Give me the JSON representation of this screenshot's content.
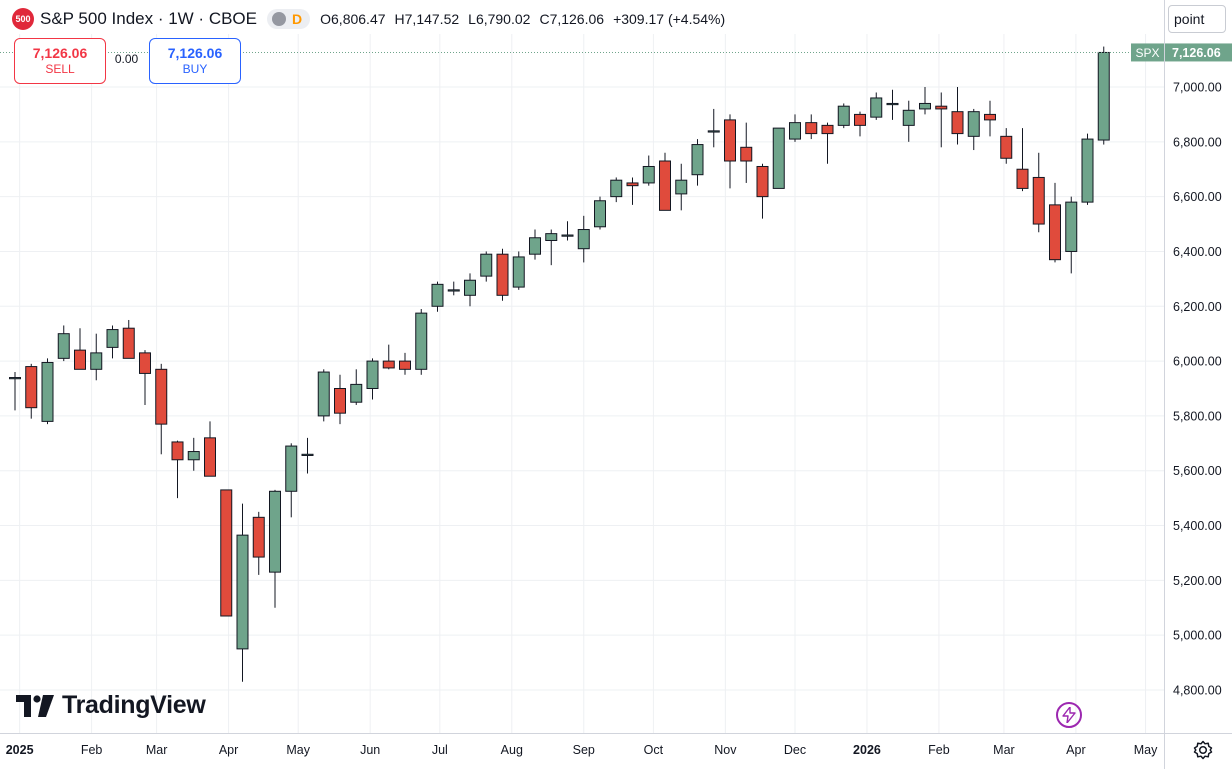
{
  "header": {
    "badge": "500",
    "title": "S&P 500 Index · 1W · CBOE",
    "pill_letter": "D",
    "ohlc": [
      {
        "key": "O",
        "value": "6,806.47"
      },
      {
        "key": "H",
        "value": "7,147.52"
      },
      {
        "key": "L",
        "value": "6,790.02"
      },
      {
        "key": "C",
        "value": "7,126.06"
      }
    ],
    "change": "+309.17 (+4.54%)"
  },
  "trade": {
    "sell_price": "7,126.06",
    "sell_label": "SELL",
    "spread": "0.00",
    "buy_price": "7,126.06",
    "buy_label": "BUY"
  },
  "price_scale": {
    "unit_label": "point"
  },
  "branding": {
    "logo_text": "TradingView"
  },
  "colors": {
    "up": "#6fa48b",
    "down": "#e04b3c",
    "grid": "#eef0f3",
    "last_price_tag": "#6fa48b"
  },
  "icons": {
    "alert": "bolt-icon",
    "settings": "gear-icon",
    "logo": "tradingview-logo-icon"
  },
  "chart_data": {
    "type": "candlestick",
    "symbol_tag": "SPX",
    "last_price": 7126.06,
    "last_price_label": "7,126.06",
    "ylim": [
      4700,
      7200
    ],
    "y_ticks": [
      4800,
      5000,
      5200,
      5400,
      5600,
      5800,
      6000,
      6200,
      6400,
      6600,
      6800,
      7000
    ],
    "y_tick_labels": [
      "4,800.00",
      "5,000.00",
      "5,200.00",
      "5,400.00",
      "5,600.00",
      "5,800.00",
      "6,000.00",
      "6,200.00",
      "6,400.00",
      "6,600.00",
      "6,800.00",
      "7,000.00"
    ],
    "x_labels": [
      {
        "label": "2025",
        "date": "2025-01-01",
        "bold": true
      },
      {
        "label": "Feb",
        "date": "2025-02-01",
        "bold": false
      },
      {
        "label": "Mar",
        "date": "2025-03-01",
        "bold": false
      },
      {
        "label": "Apr",
        "date": "2025-04-01",
        "bold": false
      },
      {
        "label": "May",
        "date": "2025-05-01",
        "bold": false
      },
      {
        "label": "Jun",
        "date": "2025-06-01",
        "bold": false
      },
      {
        "label": "Jul",
        "date": "2025-07-01",
        "bold": false
      },
      {
        "label": "Aug",
        "date": "2025-08-01",
        "bold": false
      },
      {
        "label": "Sep",
        "date": "2025-09-01",
        "bold": false
      },
      {
        "label": "Oct",
        "date": "2025-10-01",
        "bold": false
      },
      {
        "label": "Nov",
        "date": "2025-11-01",
        "bold": false
      },
      {
        "label": "Dec",
        "date": "2025-12-01",
        "bold": false
      },
      {
        "label": "2026",
        "date": "2026-01-01",
        "bold": true
      },
      {
        "label": "Feb",
        "date": "2026-02-01",
        "bold": false
      },
      {
        "label": "Mar",
        "date": "2026-03-01",
        "bold": false
      },
      {
        "label": "Apr",
        "date": "2026-04-01",
        "bold": false
      },
      {
        "label": "May",
        "date": "2026-05-01",
        "bold": false
      }
    ],
    "candles": [
      {
        "date": "2024-12-30",
        "o": 5940,
        "h": 5960,
        "l": 5820,
        "c": 5940
      },
      {
        "date": "2025-01-06",
        "o": 5980,
        "h": 5990,
        "l": 5790,
        "c": 5830
      },
      {
        "date": "2025-01-13",
        "o": 5780,
        "h": 6010,
        "l": 5770,
        "c": 5995
      },
      {
        "date": "2025-01-20",
        "o": 6010,
        "h": 6130,
        "l": 6000,
        "c": 6100
      },
      {
        "date": "2025-01-27",
        "o": 6040,
        "h": 6120,
        "l": 5970,
        "c": 5970
      },
      {
        "date": "2025-02-03",
        "o": 5970,
        "h": 6100,
        "l": 5930,
        "c": 6030
      },
      {
        "date": "2025-02-10",
        "o": 6050,
        "h": 6130,
        "l": 6010,
        "c": 6115
      },
      {
        "date": "2025-02-17",
        "o": 6120,
        "h": 6150,
        "l": 6010,
        "c": 6010
      },
      {
        "date": "2025-02-24",
        "o": 6030,
        "h": 6040,
        "l": 5840,
        "c": 5955
      },
      {
        "date": "2025-03-03",
        "o": 5970,
        "h": 5990,
        "l": 5660,
        "c": 5770
      },
      {
        "date": "2025-03-10",
        "o": 5705,
        "h": 5710,
        "l": 5500,
        "c": 5640
      },
      {
        "date": "2025-03-17",
        "o": 5640,
        "h": 5720,
        "l": 5600,
        "c": 5670
      },
      {
        "date": "2025-03-24",
        "o": 5720,
        "h": 5780,
        "l": 5580,
        "c": 5580
      },
      {
        "date": "2025-03-31",
        "o": 5530,
        "h": 5530,
        "l": 5070,
        "c": 5070
      },
      {
        "date": "2025-04-07",
        "o": 4950,
        "h": 5480,
        "l": 4830,
        "c": 5365
      },
      {
        "date": "2025-04-14",
        "o": 5430,
        "h": 5450,
        "l": 5220,
        "c": 5285
      },
      {
        "date": "2025-04-21",
        "o": 5230,
        "h": 5530,
        "l": 5100,
        "c": 5525
      },
      {
        "date": "2025-04-28",
        "o": 5525,
        "h": 5700,
        "l": 5430,
        "c": 5690
      },
      {
        "date": "2025-05-05",
        "o": 5660,
        "h": 5720,
        "l": 5590,
        "c": 5660
      },
      {
        "date": "2025-05-12",
        "o": 5800,
        "h": 5970,
        "l": 5780,
        "c": 5960
      },
      {
        "date": "2025-05-19",
        "o": 5900,
        "h": 5950,
        "l": 5770,
        "c": 5810
      },
      {
        "date": "2025-05-26",
        "o": 5850,
        "h": 5970,
        "l": 5840,
        "c": 5915
      },
      {
        "date": "2025-06-02",
        "o": 5900,
        "h": 6010,
        "l": 5860,
        "c": 6000
      },
      {
        "date": "2025-06-09",
        "o": 6000,
        "h": 6060,
        "l": 5970,
        "c": 5975
      },
      {
        "date": "2025-06-16",
        "o": 6000,
        "h": 6030,
        "l": 5950,
        "c": 5970
      },
      {
        "date": "2025-06-23",
        "o": 5970,
        "h": 6190,
        "l": 5950,
        "c": 6175
      },
      {
        "date": "2025-06-30",
        "o": 6200,
        "h": 6290,
        "l": 6180,
        "c": 6280
      },
      {
        "date": "2025-07-07",
        "o": 6260,
        "h": 6290,
        "l": 6240,
        "c": 6260
      },
      {
        "date": "2025-07-14",
        "o": 6240,
        "h": 6320,
        "l": 6200,
        "c": 6295
      },
      {
        "date": "2025-07-21",
        "o": 6310,
        "h": 6400,
        "l": 6290,
        "c": 6390
      },
      {
        "date": "2025-07-28",
        "o": 6390,
        "h": 6410,
        "l": 6220,
        "c": 6240
      },
      {
        "date": "2025-08-04",
        "o": 6270,
        "h": 6400,
        "l": 6260,
        "c": 6380
      },
      {
        "date": "2025-08-11",
        "o": 6390,
        "h": 6480,
        "l": 6370,
        "c": 6450
      },
      {
        "date": "2025-08-18",
        "o": 6440,
        "h": 6480,
        "l": 6350,
        "c": 6465
      },
      {
        "date": "2025-08-25",
        "o": 6460,
        "h": 6510,
        "l": 6440,
        "c": 6460
      },
      {
        "date": "2025-09-01",
        "o": 6410,
        "h": 6530,
        "l": 6360,
        "c": 6480
      },
      {
        "date": "2025-09-08",
        "o": 6490,
        "h": 6600,
        "l": 6480,
        "c": 6585
      },
      {
        "date": "2025-09-15",
        "o": 6600,
        "h": 6670,
        "l": 6580,
        "c": 6660
      },
      {
        "date": "2025-09-22",
        "o": 6650,
        "h": 6670,
        "l": 6570,
        "c": 6640
      },
      {
        "date": "2025-09-29",
        "o": 6650,
        "h": 6750,
        "l": 6640,
        "c": 6710
      },
      {
        "date": "2025-10-06",
        "o": 6730,
        "h": 6760,
        "l": 6550,
        "c": 6550
      },
      {
        "date": "2025-10-13",
        "o": 6610,
        "h": 6720,
        "l": 6550,
        "c": 6660
      },
      {
        "date": "2025-10-20",
        "o": 6680,
        "h": 6810,
        "l": 6640,
        "c": 6790
      },
      {
        "date": "2025-10-27",
        "o": 6840,
        "h": 6920,
        "l": 6780,
        "c": 6840
      },
      {
        "date": "2025-11-03",
        "o": 6880,
        "h": 6900,
        "l": 6630,
        "c": 6730
      },
      {
        "date": "2025-11-10",
        "o": 6780,
        "h": 6870,
        "l": 6650,
        "c": 6730
      },
      {
        "date": "2025-11-17",
        "o": 6710,
        "h": 6720,
        "l": 6520,
        "c": 6600
      },
      {
        "date": "2025-11-24",
        "o": 6630,
        "h": 6850,
        "l": 6630,
        "c": 6850
      },
      {
        "date": "2025-12-01",
        "o": 6810,
        "h": 6900,
        "l": 6800,
        "c": 6870
      },
      {
        "date": "2025-12-08",
        "o": 6870,
        "h": 6900,
        "l": 6810,
        "c": 6830
      },
      {
        "date": "2025-12-15",
        "o": 6860,
        "h": 6870,
        "l": 6720,
        "c": 6830
      },
      {
        "date": "2025-12-22",
        "o": 6860,
        "h": 6940,
        "l": 6850,
        "c": 6930
      },
      {
        "date": "2025-12-29",
        "o": 6900,
        "h": 6910,
        "l": 6820,
        "c": 6860
      },
      {
        "date": "2026-01-05",
        "o": 6890,
        "h": 6980,
        "l": 6880,
        "c": 6960
      },
      {
        "date": "2026-01-12",
        "o": 6940,
        "h": 6990,
        "l": 6880,
        "c": 6940
      },
      {
        "date": "2026-01-19",
        "o": 6860,
        "h": 6950,
        "l": 6800,
        "c": 6915
      },
      {
        "date": "2026-01-26",
        "o": 6920,
        "h": 7000,
        "l": 6900,
        "c": 6940
      },
      {
        "date": "2026-02-02",
        "o": 6930,
        "h": 6980,
        "l": 6780,
        "c": 6920
      },
      {
        "date": "2026-02-09",
        "o": 6910,
        "h": 7000,
        "l": 6790,
        "c": 6830
      },
      {
        "date": "2026-02-16",
        "o": 6820,
        "h": 6920,
        "l": 6770,
        "c": 6910
      },
      {
        "date": "2026-02-23",
        "o": 6900,
        "h": 6950,
        "l": 6820,
        "c": 6880
      },
      {
        "date": "2026-03-02",
        "o": 6820,
        "h": 6850,
        "l": 6720,
        "c": 6740
      },
      {
        "date": "2026-03-09",
        "o": 6700,
        "h": 6850,
        "l": 6620,
        "c": 6630
      },
      {
        "date": "2026-03-16",
        "o": 6670,
        "h": 6760,
        "l": 6470,
        "c": 6500
      },
      {
        "date": "2026-03-23",
        "o": 6570,
        "h": 6650,
        "l": 6360,
        "c": 6370
      },
      {
        "date": "2026-03-30",
        "o": 6400,
        "h": 6600,
        "l": 6320,
        "c": 6580
      },
      {
        "date": "2026-04-06",
        "o": 6580,
        "h": 6830,
        "l": 6570,
        "c": 6810
      },
      {
        "date": "2026-04-13",
        "o": 6806.47,
        "h": 7147.52,
        "l": 6790.02,
        "c": 7126.06
      }
    ]
  }
}
